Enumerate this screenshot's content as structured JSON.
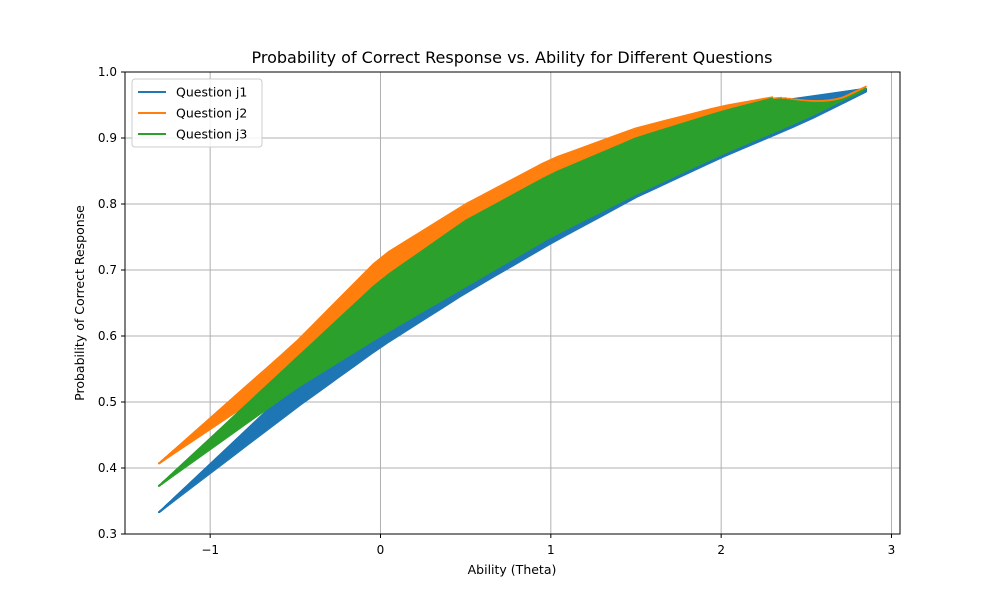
{
  "chart_data": {
    "type": "line",
    "title": "Probability of Correct Response vs. Ability for Different Questions",
    "xlabel": "Ability (Theta)",
    "ylabel": "Probability of Correct Response",
    "xlim": [
      -1.5,
      3.05
    ],
    "ylim": [
      0.3,
      1.0
    ],
    "xticks": [
      -1,
      0,
      1,
      2,
      3
    ],
    "xtick_labels": [
      "−1",
      "0",
      "1",
      "2",
      "3"
    ],
    "yticks": [
      0.3,
      0.4,
      0.5,
      0.6,
      0.7,
      0.8,
      0.9,
      1.0
    ],
    "ytick_labels": [
      "0.3",
      "0.4",
      "0.5",
      "0.6",
      "0.7",
      "0.8",
      "0.9",
      "1.0"
    ],
    "grid": true,
    "legend_position": "top-left",
    "series": [
      {
        "name": "Question j1",
        "color": "#1f77b4",
        "upper_envelope": [
          [
            -1.3,
            0.333
          ],
          [
            -0.5,
            0.528
          ],
          [
            0,
            0.62
          ],
          [
            0.5,
            0.71
          ],
          [
            1,
            0.79
          ],
          [
            1.5,
            0.87
          ],
          [
            2,
            0.935
          ],
          [
            2.3,
            0.955
          ],
          [
            2.85,
            0.975
          ]
        ],
        "lower_envelope": [
          [
            -1.3,
            0.333
          ],
          [
            -0.5,
            0.49
          ],
          [
            0,
            0.583
          ],
          [
            0.5,
            0.665
          ],
          [
            1,
            0.74
          ],
          [
            1.5,
            0.81
          ],
          [
            2,
            0.87
          ],
          [
            2.5,
            0.925
          ],
          [
            2.85,
            0.97
          ]
        ]
      },
      {
        "name": "Question j2",
        "color": "#ff7f0e",
        "upper_envelope": [
          [
            -1.3,
            0.407
          ],
          [
            -0.5,
            0.59
          ],
          [
            0,
            0.72
          ],
          [
            0.5,
            0.8
          ],
          [
            1,
            0.868
          ],
          [
            1.5,
            0.915
          ],
          [
            2,
            0.948
          ],
          [
            2.3,
            0.962
          ]
        ],
        "lower_envelope": [
          [
            -1.3,
            0.407
          ],
          [
            -0.5,
            0.545
          ],
          [
            0,
            0.625
          ],
          [
            0.5,
            0.69
          ],
          [
            1,
            0.76
          ],
          [
            1.5,
            0.83
          ],
          [
            2,
            0.885
          ],
          [
            2.5,
            0.935
          ],
          [
            2.85,
            0.978
          ]
        ]
      },
      {
        "name": "Question j3",
        "color": "#2ca02c",
        "upper_envelope": [
          [
            -1.3,
            0.373
          ],
          [
            -0.5,
            0.565
          ],
          [
            0,
            0.685
          ],
          [
            0.5,
            0.775
          ],
          [
            1,
            0.845
          ],
          [
            1.5,
            0.9
          ],
          [
            2,
            0.94
          ],
          [
            2.3,
            0.96
          ]
        ],
        "lower_envelope": [
          [
            -1.3,
            0.373
          ],
          [
            -0.5,
            0.52
          ],
          [
            0,
            0.6
          ],
          [
            0.5,
            0.675
          ],
          [
            1,
            0.75
          ],
          [
            1.5,
            0.815
          ],
          [
            2,
            0.875
          ],
          [
            2.5,
            0.93
          ],
          [
            2.85,
            0.975
          ]
        ]
      }
    ]
  }
}
